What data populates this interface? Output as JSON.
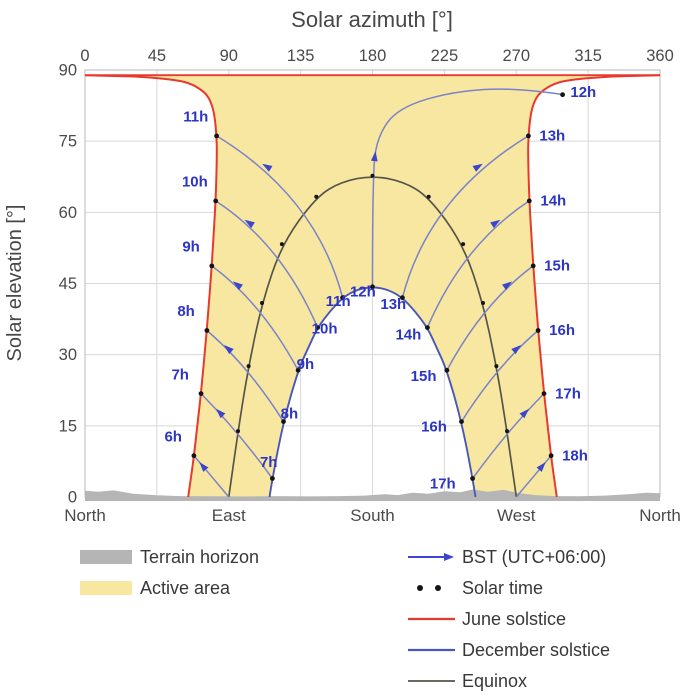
{
  "chart_data": {
    "type": "line",
    "title": "Solar azimuth [°]",
    "ylabel": "Solar elevation [°]",
    "xlim": [
      0,
      360
    ],
    "ylim": [
      0,
      90
    ],
    "x_ticks": [
      0,
      45,
      90,
      135,
      180,
      225,
      270,
      315,
      360
    ],
    "y_ticks": [
      90,
      75,
      60,
      45,
      30,
      15,
      0
    ],
    "compass_labels": [
      {
        "text": "North",
        "az": 0
      },
      {
        "text": "East",
        "az": 90
      },
      {
        "text": "South",
        "az": 180
      },
      {
        "text": "West",
        "az": 270
      },
      {
        "text": "North",
        "az": 360
      }
    ],
    "curves": {
      "june_morning": [
        [
          64.6,
          0
        ],
        [
          66.5,
          4.4
        ],
        [
          68.2,
          8.7
        ],
        [
          69.7,
          13
        ],
        [
          72.6,
          21.8
        ],
        [
          76.3,
          35.1
        ],
        [
          79.4,
          48.7
        ],
        [
          81.8,
          62.4
        ],
        [
          82.6,
          71.6
        ],
        [
          82.4,
          76.1
        ],
        [
          81.0,
          80.7
        ],
        [
          78.6,
          83.5
        ],
        [
          75.1,
          85.3
        ],
        [
          66.7,
          87.1
        ],
        [
          57.1,
          87.9
        ],
        [
          34.3,
          88.6
        ],
        [
          14,
          88.8
        ],
        [
          0,
          88.9
        ]
      ],
      "june_afternoon": [
        [
          360,
          88.9
        ],
        [
          346,
          88.8
        ],
        [
          325.7,
          88.6
        ],
        [
          302.9,
          87.9
        ],
        [
          293.3,
          87.1
        ],
        [
          284.9,
          85.3
        ],
        [
          281.4,
          83.5
        ],
        [
          279.0,
          80.7
        ],
        [
          277.6,
          76.1
        ],
        [
          277.4,
          71.6
        ],
        [
          278.2,
          62.4
        ],
        [
          280.6,
          48.7
        ],
        [
          283.7,
          35.1
        ],
        [
          287.4,
          21.8
        ],
        [
          290.3,
          13
        ],
        [
          291.8,
          8.7
        ],
        [
          293.5,
          4.4
        ],
        [
          295.4,
          0
        ]
      ],
      "june_top": [
        [
          0,
          88.9
        ],
        [
          360,
          88.9
        ]
      ],
      "equinox": [
        [
          90,
          0
        ],
        [
          95.8,
          13.9
        ],
        [
          102.4,
          27.6
        ],
        [
          110.8,
          40.9
        ],
        [
          123.3,
          53.3
        ],
        [
          144.8,
          63.3
        ],
        [
          160.9,
          66.5
        ],
        [
          180,
          67.7
        ],
        [
          199.1,
          66.5
        ],
        [
          215.2,
          63.3
        ],
        [
          236.7,
          53.3
        ],
        [
          249.2,
          40.9
        ],
        [
          257.6,
          27.6
        ],
        [
          264.2,
          13.9
        ],
        [
          270,
          0
        ]
      ],
      "december": [
        [
          115.5,
          0
        ],
        [
          117.3,
          3.9
        ],
        [
          124.3,
          15.9
        ],
        [
          133.4,
          26.7
        ],
        [
          140,
          31.6
        ],
        [
          145.6,
          35.7
        ],
        [
          153.5,
          39.2
        ],
        [
          161.3,
          42
        ],
        [
          170,
          43.7
        ],
        [
          180,
          44.3
        ],
        [
          190,
          43.7
        ],
        [
          198.7,
          42
        ],
        [
          206.5,
          39.2
        ],
        [
          214.4,
          35.7
        ],
        [
          220,
          31.6
        ],
        [
          226.6,
          26.7
        ],
        [
          235.7,
          15.9
        ],
        [
          242.7,
          3.9
        ],
        [
          244.5,
          0
        ]
      ]
    },
    "series_names": [
      "June solstice",
      "December solstice",
      "Equinox"
    ],
    "timezone_label": "BST (UTC+06:00)",
    "hour_lines": [
      {
        "label": "6h",
        "pts": [
          [
            90,
            0
          ],
          [
            79.1,
            4.4
          ],
          [
            68.2,
            8.7
          ]
        ],
        "arrow": 1
      },
      {
        "label": "7h",
        "pts": [
          [
            117.3,
            3.9
          ],
          [
            95.8,
            13.9
          ],
          [
            72.6,
            21.8
          ]
        ],
        "arrow": 1
      },
      {
        "label": "8h",
        "pts": [
          [
            124.3,
            15.9
          ],
          [
            102.4,
            27.6
          ],
          [
            76.3,
            35.1
          ]
        ],
        "arrow": 1
      },
      {
        "label": "9h",
        "pts": [
          [
            133.4,
            26.7
          ],
          [
            110.8,
            40.9
          ],
          [
            79.4,
            48.7
          ]
        ],
        "arrow": 1
      },
      {
        "label": "10h",
        "pts": [
          [
            145.6,
            35.7
          ],
          [
            123.3,
            53.3
          ],
          [
            81.8,
            62.4
          ]
        ],
        "arrow": 1
      },
      {
        "label": "11h",
        "pts": [
          [
            161.3,
            42
          ],
          [
            144.8,
            63.3
          ],
          [
            82.4,
            76.1
          ]
        ],
        "arrow": 1
      },
      {
        "label": "12h",
        "pts": [
          [
            180,
            44.3
          ],
          [
            180,
            67.7
          ],
          [
            183,
            76
          ],
          [
            196,
            82
          ],
          [
            230,
            85.5
          ],
          [
            270,
            86.3
          ],
          [
            300,
            84.8
          ]
        ],
        "arrow": 1
      },
      {
        "label": "13h",
        "pts": [
          [
            198.7,
            42
          ],
          [
            215.2,
            63.3
          ],
          [
            277.6,
            76.1
          ]
        ],
        "arrow": 1
      },
      {
        "label": "14h",
        "pts": [
          [
            214.4,
            35.7
          ],
          [
            236.7,
            53.3
          ],
          [
            278.2,
            62.4
          ]
        ],
        "arrow": 1
      },
      {
        "label": "15h",
        "pts": [
          [
            226.6,
            26.7
          ],
          [
            249.2,
            40.9
          ],
          [
            280.6,
            48.7
          ]
        ],
        "arrow": 1
      },
      {
        "label": "16h",
        "pts": [
          [
            235.7,
            15.9
          ],
          [
            257.6,
            27.6
          ],
          [
            283.7,
            35.1
          ]
        ],
        "arrow": 1
      },
      {
        "label": "17h",
        "pts": [
          [
            242.7,
            3.9
          ],
          [
            264.2,
            13.9
          ],
          [
            287.4,
            21.8
          ]
        ],
        "arrow": 1
      },
      {
        "label": "18h",
        "pts": [
          [
            270,
            0
          ],
          [
            281,
            4.4
          ],
          [
            291.8,
            8.7
          ]
        ],
        "arrow": 1
      }
    ],
    "hour_labels": {
      "june": [
        {
          "text": "6h",
          "az": 55.2,
          "el": 11.7
        },
        {
          "text": "7h",
          "az": 59.6,
          "el": 24.8
        },
        {
          "text": "8h",
          "az": 63.3,
          "el": 38.1
        },
        {
          "text": "9h",
          "az": 66.4,
          "el": 51.7
        },
        {
          "text": "10h",
          "az": 68.8,
          "el": 65.4
        },
        {
          "text": "11h",
          "az": 69.4,
          "el": 79.1
        },
        {
          "text": "12h",
          "az": 312,
          "el": 84.3
        },
        {
          "text": "13h",
          "az": 292.6,
          "el": 75.1
        },
        {
          "text": "14h",
          "az": 293.2,
          "el": 61.4
        },
        {
          "text": "15h",
          "az": 295.6,
          "el": 47.7
        },
        {
          "text": "16h",
          "az": 298.7,
          "el": 34.1
        },
        {
          "text": "17h",
          "az": 302.4,
          "el": 20.8
        },
        {
          "text": "18h",
          "az": 306.8,
          "el": 7.7
        }
      ],
      "december": [
        {
          "text": "7h",
          "az": 115,
          "el": 6.3
        },
        {
          "text": "8h",
          "az": 128,
          "el": 16.5
        },
        {
          "text": "9h",
          "az": 138,
          "el": 27
        },
        {
          "text": "10h",
          "az": 150,
          "el": 34.5
        },
        {
          "text": "11h",
          "az": 158.5,
          "el": 40.3
        },
        {
          "text": "12h",
          "az": 174,
          "el": 42.3
        },
        {
          "text": "13h",
          "az": 193,
          "el": 39.6
        },
        {
          "text": "14h",
          "az": 202.5,
          "el": 33.2
        },
        {
          "text": "15h",
          "az": 212,
          "el": 24.5
        },
        {
          "text": "16h",
          "az": 218.5,
          "el": 13.8
        },
        {
          "text": "17h",
          "az": 224,
          "el": 1.8
        }
      ]
    },
    "solar_time_dots": {
      "june": [
        [
          68.2,
          8.7
        ],
        [
          72.6,
          21.8
        ],
        [
          76.3,
          35.1
        ],
        [
          79.4,
          48.7
        ],
        [
          81.8,
          62.4
        ],
        [
          82.4,
          76.1
        ],
        [
          299,
          84.8
        ],
        [
          277.6,
          76.1
        ],
        [
          278.2,
          62.4
        ],
        [
          280.6,
          48.7
        ],
        [
          283.7,
          35.1
        ],
        [
          287.4,
          21.8
        ],
        [
          291.8,
          8.7
        ]
      ],
      "december": [
        [
          117.3,
          3.9
        ],
        [
          124.3,
          15.9
        ],
        [
          133.4,
          26.7
        ],
        [
          145.6,
          35.7
        ],
        [
          161.3,
          42
        ],
        [
          180,
          44.3
        ],
        [
          198.7,
          42
        ],
        [
          214.4,
          35.7
        ],
        [
          226.6,
          26.7
        ],
        [
          235.7,
          15.9
        ],
        [
          242.7,
          3.9
        ]
      ],
      "equinox": [
        [
          95.8,
          13.9
        ],
        [
          102.4,
          27.6
        ],
        [
          110.8,
          40.9
        ],
        [
          123.3,
          53.3
        ],
        [
          144.8,
          63.3
        ],
        [
          180,
          67.7
        ],
        [
          215.2,
          63.3
        ],
        [
          236.7,
          53.3
        ],
        [
          249.2,
          40.9
        ],
        [
          257.6,
          27.6
        ],
        [
          264.2,
          13.9
        ]
      ]
    },
    "terrain": [
      [
        0,
        1.3
      ],
      [
        8,
        1.1
      ],
      [
        18,
        1.4
      ],
      [
        30,
        0.7
      ],
      [
        45,
        0.35
      ],
      [
        60,
        0.2
      ],
      [
        80,
        0.15
      ],
      [
        100,
        0.1
      ],
      [
        120,
        0.2
      ],
      [
        140,
        0.12
      ],
      [
        160,
        0.18
      ],
      [
        175,
        0.3
      ],
      [
        188,
        0.6
      ],
      [
        196,
        0.4
      ],
      [
        205,
        0.9
      ],
      [
        215,
        0.7
      ],
      [
        225,
        1.2
      ],
      [
        235,
        1.0
      ],
      [
        243,
        1.6
      ],
      [
        252,
        1.1
      ],
      [
        262,
        1.5
      ],
      [
        272,
        0.8
      ],
      [
        282,
        0.4
      ],
      [
        295,
        0.2
      ],
      [
        310,
        0.15
      ],
      [
        325,
        0.3
      ],
      [
        340,
        0.6
      ],
      [
        352,
        0.9
      ],
      [
        360,
        0.8
      ]
    ]
  },
  "legend": {
    "left": [
      {
        "label": "Terrain horizon",
        "swatch": "terrain"
      },
      {
        "label": "Active area",
        "swatch": "active"
      }
    ],
    "right": [
      {
        "label": "BST (UTC+06:00)",
        "swatch": "arrow"
      },
      {
        "label": "Solar time",
        "swatch": "dots"
      },
      {
        "label": "June solstice",
        "swatch": "line-red"
      },
      {
        "label": "December solstice",
        "swatch": "line-blue"
      },
      {
        "label": "Equinox",
        "swatch": "line-dark"
      }
    ]
  },
  "colors": {
    "active": "#f7e7a1",
    "terrain": "#b5b5b5",
    "june": "#e8392e",
    "december": "#4a57b5",
    "equinox": "#55554a",
    "hour_line": "#7a83c9",
    "hour_label": "#2d35c4",
    "arrow": "#3b46cc",
    "dot": "#141414",
    "grid": "#d8d8d8",
    "frame": "#b8b8b8"
  }
}
